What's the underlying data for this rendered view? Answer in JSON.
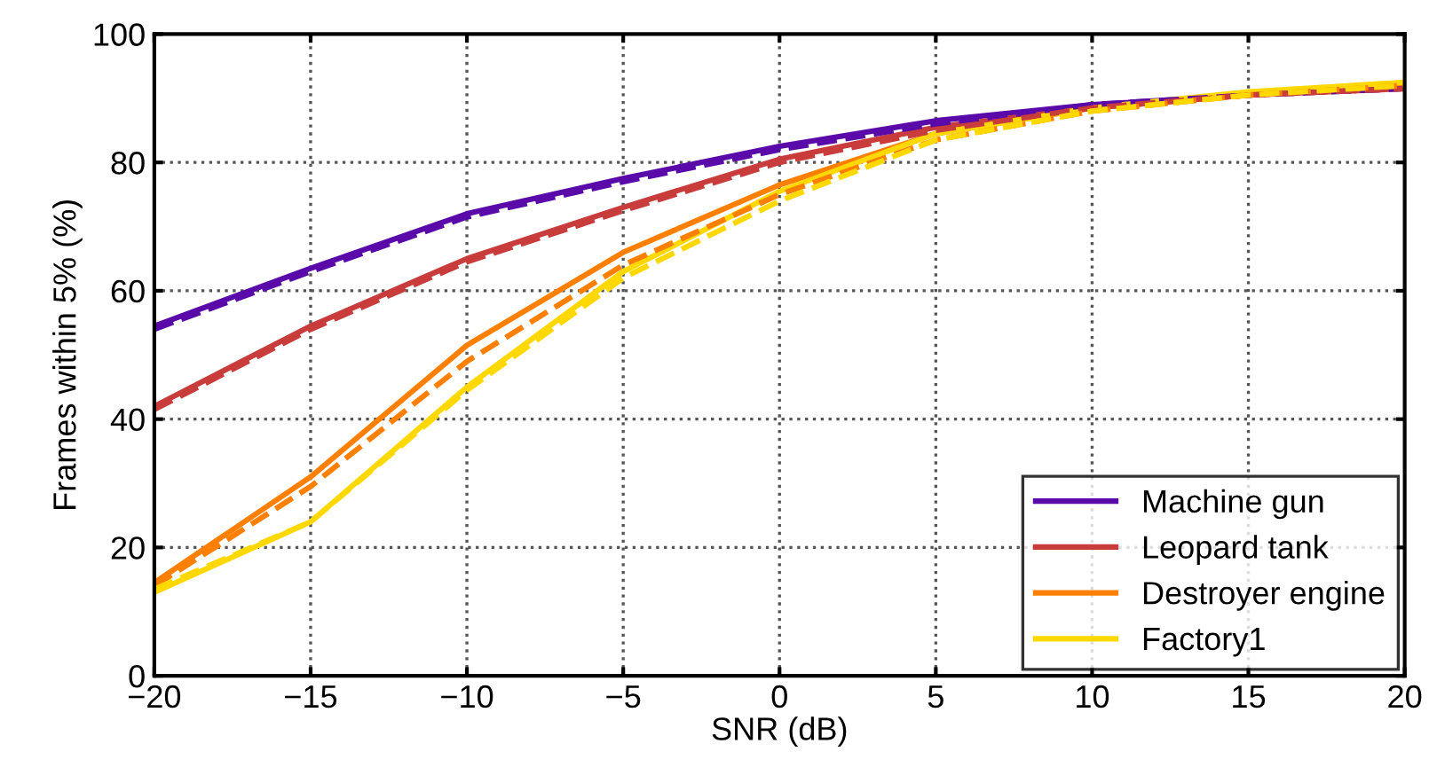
{
  "chart_data": {
    "type": "line",
    "xlabel": "SNR (dB)",
    "ylabel": "Frames within 5% (%)",
    "x": [
      -20,
      -15,
      -10,
      -5,
      0,
      5,
      10,
      15,
      20
    ],
    "xlim": [
      -20,
      20
    ],
    "xticks": [
      {
        "value": -20,
        "label": "−20"
      },
      {
        "value": -15,
        "label": "−15"
      },
      {
        "value": -10,
        "label": "−10"
      },
      {
        "value": -5,
        "label": "−5"
      },
      0,
      5,
      10,
      15,
      20
    ],
    "ylim": [
      0,
      100
    ],
    "yticks": [
      0,
      20,
      40,
      60,
      80,
      100
    ],
    "grid": true,
    "legend": "bottom right",
    "marker": "none",
    "series": [
      {
        "name": "Machine gun",
        "color": "#5a0aa8",
        "line_style": "solid",
        "values": [
          54.5,
          63.5,
          72,
          77.5,
          82.5,
          86.5,
          89,
          90.5,
          92
        ]
      },
      {
        "name": "Leopard tank",
        "color": "#c83c3c",
        "line_style": "solid",
        "values": [
          42,
          54.5,
          65,
          73,
          80.5,
          85.5,
          88.5,
          90.5,
          91.5
        ]
      },
      {
        "name": "Destroyer engine",
        "color": "#ff8000",
        "line_style": "solid",
        "values": [
          14.5,
          31,
          51.5,
          66,
          76.5,
          84.5,
          88.5,
          90.5,
          92
        ]
      },
      {
        "name": "Factory1",
        "color": "#ffd800",
        "line_style": "solid",
        "values": [
          13,
          24,
          45,
          63,
          75.5,
          84.5,
          88.5,
          91,
          92.5
        ]
      },
      {
        "color": "#5a0aa8",
        "line_style": "dashed",
        "values": [
          54,
          63,
          71.5,
          77,
          82,
          86,
          89,
          90.5,
          91.5
        ]
      },
      {
        "color": "#c83c3c",
        "line_style": "dashed",
        "values": [
          41.5,
          54,
          64.5,
          72.5,
          80,
          85,
          88.5,
          90.5,
          91.5
        ]
      },
      {
        "color": "#ff8000",
        "line_style": "dashed",
        "values": [
          14,
          29.5,
          49,
          64,
          75,
          83.5,
          88,
          90.5,
          92
        ]
      },
      {
        "color": "#ffd800",
        "line_style": "dashed",
        "values": [
          13.5,
          24,
          44.5,
          62,
          74,
          83.5,
          88,
          90.5,
          92
        ]
      }
    ]
  }
}
